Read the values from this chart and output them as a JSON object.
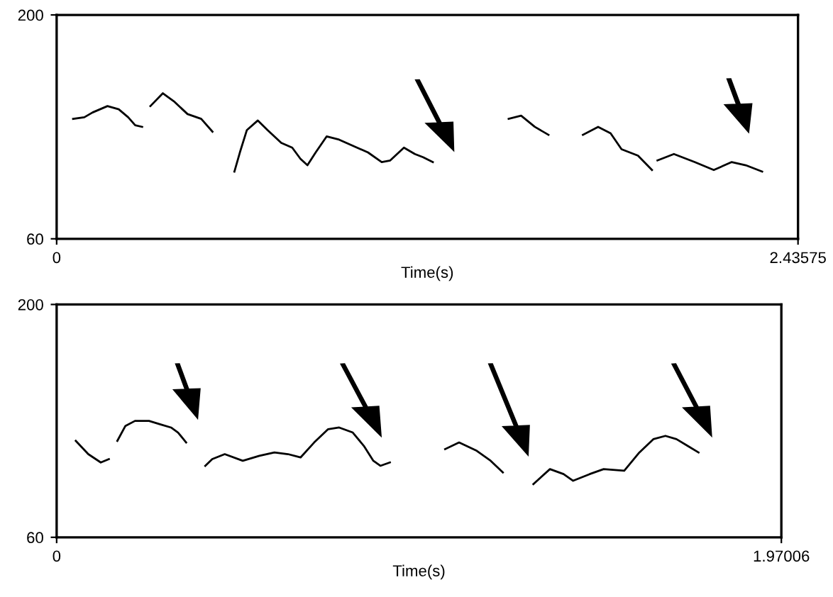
{
  "chart_data": [
    {
      "type": "line",
      "xlabel": "Time(s)",
      "xlim": [
        0,
        2.43575
      ],
      "ylim": [
        60,
        200
      ],
      "xticks": [
        0,
        2.43575
      ],
      "yticks": [
        60,
        200
      ],
      "marker": "none",
      "line_style": "solid",
      "series": [
        {
          "color": "#000000",
          "x": [
            0.054,
            0.091,
            0.118,
            0.167,
            0.204,
            0.235,
            0.258,
            0.281
          ],
          "values": [
            135,
            136,
            139,
            143,
            141,
            136,
            131,
            130
          ]
        },
        {
          "color": "#000000",
          "x": [
            0.308,
            0.349,
            0.385,
            0.43,
            0.475,
            0.512
          ],
          "values": [
            143,
            151,
            146,
            138,
            135,
            127
          ]
        },
        {
          "color": "#000000",
          "x": [
            0.584,
            0.602,
            0.625,
            0.661,
            0.693,
            0.738,
            0.774,
            0.801,
            0.824,
            0.851,
            0.887,
            0.928,
            0.987,
            1.023,
            1.068,
            1.096,
            1.141,
            1.177,
            1.204,
            1.236
          ],
          "values": [
            102,
            114,
            128,
            134,
            128,
            120,
            117,
            110,
            106,
            114,
            124,
            122,
            117,
            114,
            108,
            109,
            117,
            113,
            111,
            108
          ]
        },
        {
          "color": "#000000",
          "x": [
            1.485,
            1.526,
            1.571,
            1.616
          ],
          "values": [
            135,
            137,
            130,
            125
          ]
        },
        {
          "color": "#000000",
          "x": [
            1.729,
            1.779,
            1.82,
            1.856,
            1.91,
            1.956
          ],
          "values": [
            125,
            130,
            126,
            116,
            112,
            103
          ]
        },
        {
          "color": "#000000",
          "x": [
            1.974,
            2.028,
            2.096,
            2.159,
            2.218,
            2.264,
            2.318
          ],
          "values": [
            109,
            113,
            108,
            103,
            108,
            106,
            102
          ]
        }
      ]
    },
    {
      "type": "line",
      "xlabel": "Time(s)",
      "xlim": [
        0,
        1.97006
      ],
      "ylim": [
        60,
        200
      ],
      "xticks": [
        0,
        1.97006
      ],
      "yticks": [
        60,
        200
      ],
      "marker": "none",
      "line_style": "solid",
      "series": [
        {
          "color": "#000000",
          "x": [
            0.052,
            0.086,
            0.12,
            0.142
          ],
          "values": [
            118,
            110,
            105,
            107
          ]
        },
        {
          "color": "#000000",
          "x": [
            0.165,
            0.187,
            0.213,
            0.251,
            0.281,
            0.311,
            0.33,
            0.352
          ],
          "values": [
            118,
            127,
            130,
            130,
            128,
            126,
            123,
            117
          ]
        },
        {
          "color": "#000000",
          "x": [
            0.404,
            0.423,
            0.457,
            0.506,
            0.551,
            0.592,
            0.629,
            0.663,
            0.7,
            0.738,
            0.768,
            0.805,
            0.835,
            0.861,
            0.88,
            0.906
          ],
          "values": [
            103,
            107,
            110,
            106,
            109,
            111,
            110,
            108,
            117,
            125,
            126,
            123,
            115,
            106,
            103,
            105
          ]
        },
        {
          "color": "#000000",
          "x": [
            1.056,
            1.094,
            1.142,
            1.18,
            1.213
          ],
          "values": [
            113,
            117,
            112,
            106,
            99
          ]
        },
        {
          "color": "#000000",
          "x": [
            1.296,
            1.341,
            1.378,
            1.404,
            1.449,
            1.487,
            1.543,
            1.584,
            1.622,
            1.655,
            1.685,
            1.715,
            1.745
          ],
          "values": [
            92,
            101,
            98,
            94,
            98,
            101,
            100,
            111,
            119,
            121,
            119,
            115,
            111
          ]
        }
      ]
    }
  ]
}
